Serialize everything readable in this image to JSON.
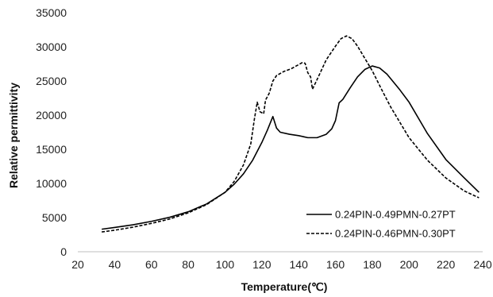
{
  "chart_data": {
    "type": "line",
    "title": "",
    "xlabel": "Temperature(℃)",
    "ylabel": "Relative permittivity",
    "xlim": [
      20,
      240
    ],
    "ylim": [
      0,
      35000
    ],
    "xticks": [
      "20",
      "40",
      "60",
      "80",
      "100",
      "120",
      "140",
      "160",
      "180",
      "200",
      "220",
      "240"
    ],
    "yticks": [
      "0",
      "5000",
      "10000",
      "15000",
      "20000",
      "25000",
      "30000",
      "35000"
    ],
    "grid": false,
    "legend_position": "bottom-right",
    "series": [
      {
        "name": "0.24PIN-0.49PMN-0.27PT",
        "style": "solid",
        "color": "#000000",
        "points": [
          [
            33,
            3300
          ],
          [
            40,
            3550
          ],
          [
            50,
            3950
          ],
          [
            60,
            4450
          ],
          [
            70,
            5050
          ],
          [
            80,
            5850
          ],
          [
            90,
            7000
          ],
          [
            100,
            8700
          ],
          [
            105,
            9900
          ],
          [
            110,
            11400
          ],
          [
            115,
            13400
          ],
          [
            120,
            16000
          ],
          [
            123,
            17800
          ],
          [
            126,
            19800
          ],
          [
            128,
            18100
          ],
          [
            130,
            17500
          ],
          [
            135,
            17200
          ],
          [
            140,
            17000
          ],
          [
            145,
            16700
          ],
          [
            150,
            16700
          ],
          [
            155,
            17200
          ],
          [
            158,
            18000
          ],
          [
            160,
            19200
          ],
          [
            162,
            21800
          ],
          [
            164,
            22300
          ],
          [
            168,
            24000
          ],
          [
            172,
            25600
          ],
          [
            176,
            26700
          ],
          [
            180,
            27200
          ],
          [
            184,
            26900
          ],
          [
            188,
            26000
          ],
          [
            195,
            23700
          ],
          [
            200,
            21900
          ],
          [
            210,
            17300
          ],
          [
            220,
            13500
          ],
          [
            230,
            10800
          ],
          [
            238,
            8700
          ]
        ]
      },
      {
        "name": "0.24PIN-0.46PMN-0.30PT",
        "style": "dashed",
        "color": "#000000",
        "points": [
          [
            33,
            2900
          ],
          [
            40,
            3150
          ],
          [
            50,
            3600
          ],
          [
            60,
            4150
          ],
          [
            70,
            4800
          ],
          [
            80,
            5700
          ],
          [
            90,
            6900
          ],
          [
            100,
            8700
          ],
          [
            105,
            10300
          ],
          [
            110,
            12700
          ],
          [
            114,
            15800
          ],
          [
            116,
            19500
          ],
          [
            117.5,
            21900
          ],
          [
            119,
            20500
          ],
          [
            121,
            20200
          ],
          [
            122,
            22200
          ],
          [
            124,
            23200
          ],
          [
            126,
            25000
          ],
          [
            128,
            25800
          ],
          [
            132,
            26400
          ],
          [
            136,
            26800
          ],
          [
            140,
            27400
          ],
          [
            142,
            27700
          ],
          [
            143.5,
            27600
          ],
          [
            145,
            26200
          ],
          [
            146.5,
            25600
          ],
          [
            147.5,
            23800
          ],
          [
            150,
            25200
          ],
          [
            155,
            28100
          ],
          [
            160,
            30100
          ],
          [
            163,
            31200
          ],
          [
            166,
            31600
          ],
          [
            169,
            31200
          ],
          [
            172,
            30100
          ],
          [
            176,
            28300
          ],
          [
            180,
            26500
          ],
          [
            185,
            23800
          ],
          [
            190,
            21200
          ],
          [
            200,
            16700
          ],
          [
            210,
            13400
          ],
          [
            220,
            10800
          ],
          [
            230,
            8900
          ],
          [
            238,
            7900
          ]
        ]
      }
    ]
  }
}
